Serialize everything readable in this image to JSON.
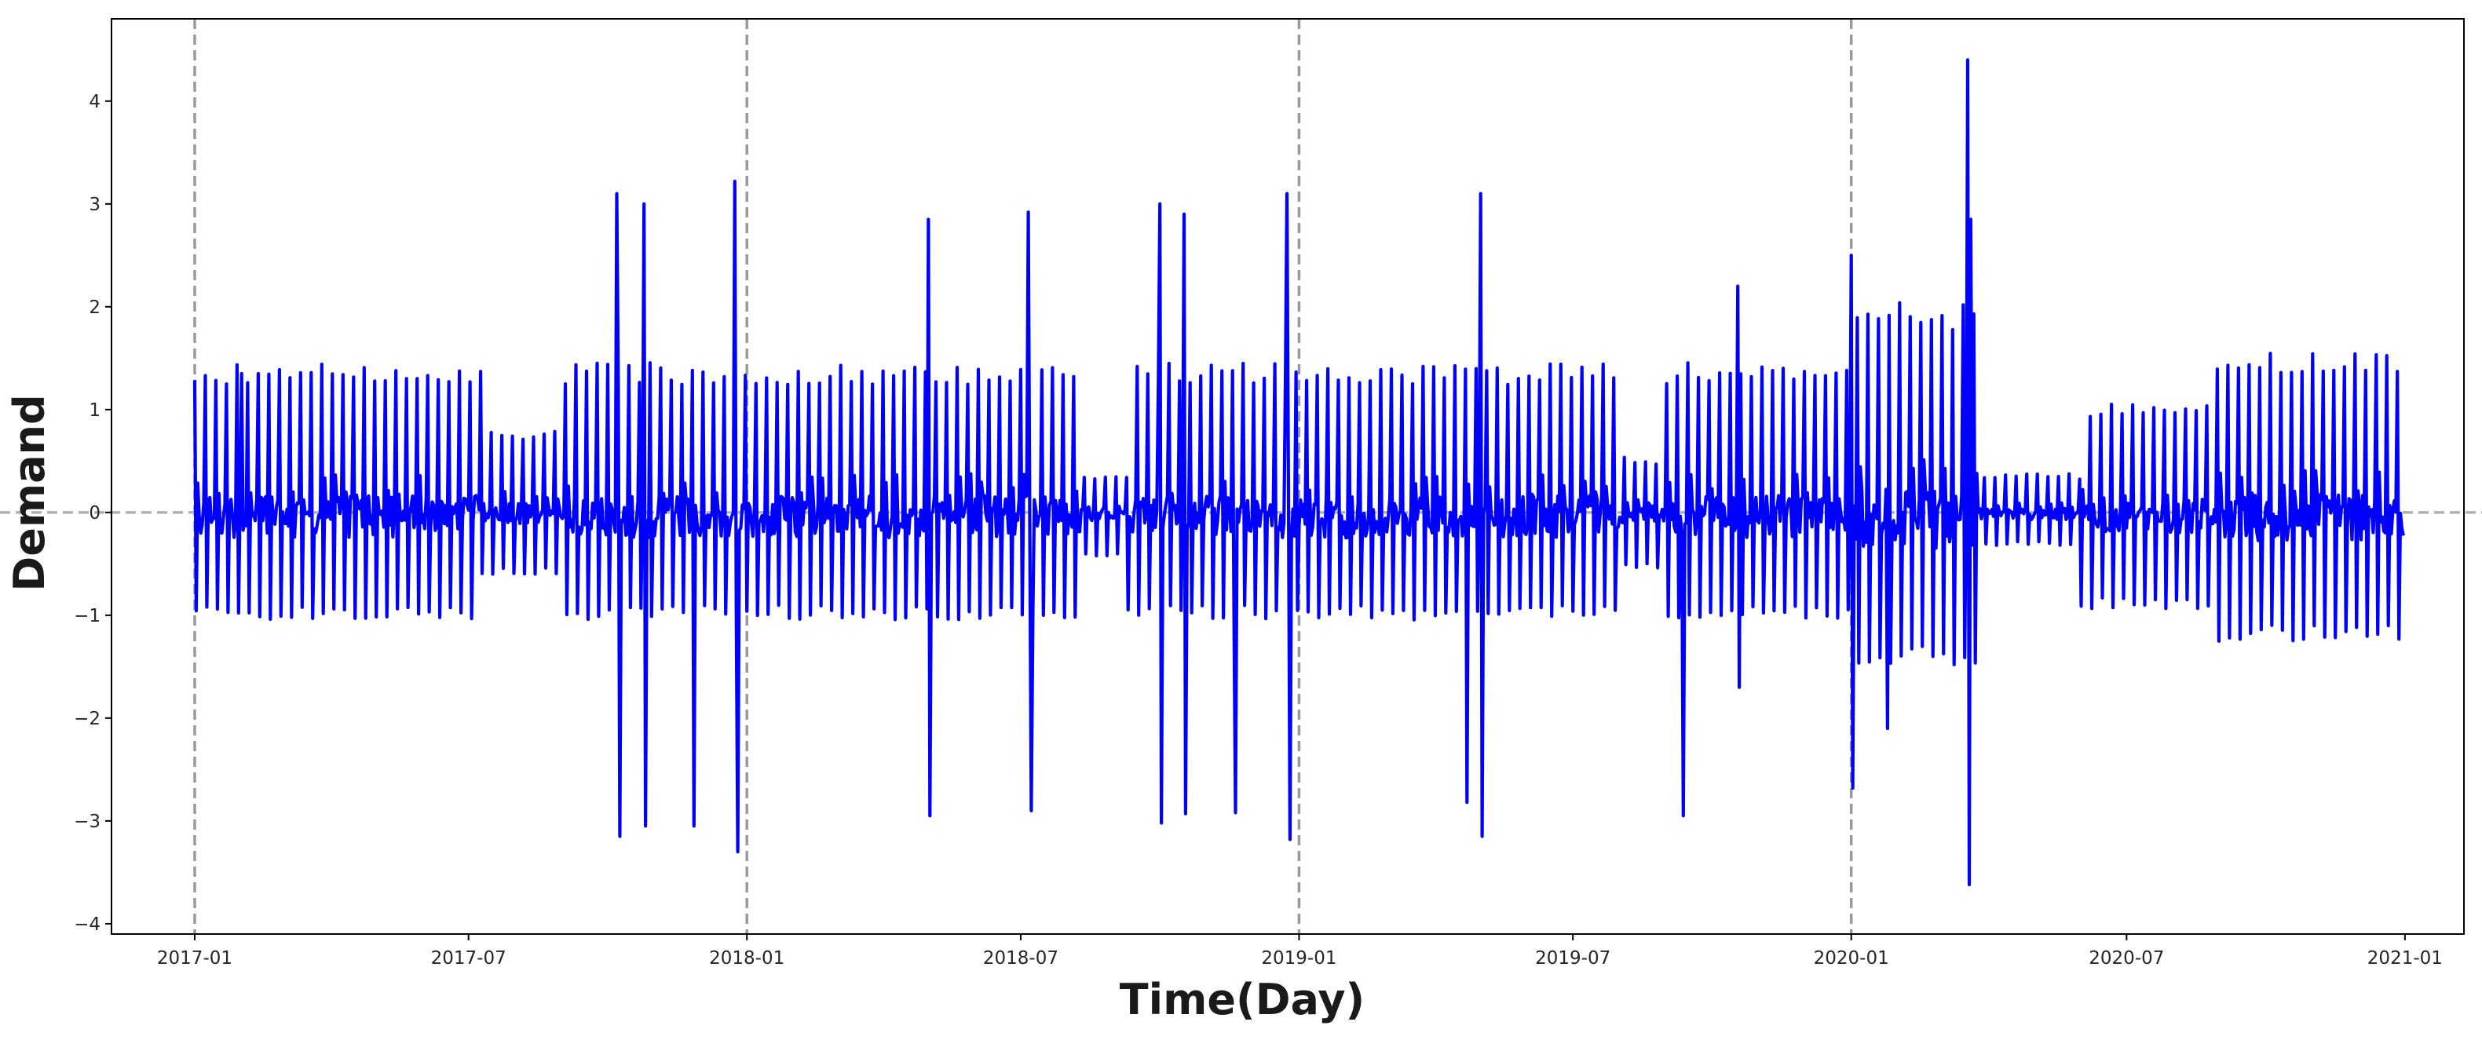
{
  "chart_data": {
    "type": "line",
    "title": "",
    "xlabel": "Time(Day)",
    "ylabel": "Demand",
    "x_axis": {
      "kind": "date",
      "range": [
        "2016-11-07",
        "2021-02-09"
      ],
      "ticks": [
        "2017-01",
        "2017-07",
        "2018-01",
        "2018-07",
        "2019-01",
        "2019-07",
        "2020-01",
        "2020-07",
        "2021-01"
      ]
    },
    "y_axis": {
      "range": [
        -4.1,
        4.8
      ],
      "ticks": [
        -4,
        -3,
        -2,
        -1,
        0,
        1,
        2,
        3,
        4
      ]
    },
    "grid": false,
    "legend": "none",
    "reference_lines": {
      "vertical_dates": [
        "2017-01-01",
        "2018-01-01",
        "2019-01-01",
        "2020-01-01"
      ],
      "horizontal_y": 0,
      "style": "dashed",
      "color": "#9a9a9a"
    },
    "series": [
      {
        "color": "#0000ff",
        "note_values": "daily demand from 2017-01-01 to 2020-12-31 with a weekly pattern; notable extremes listed in peaks",
        "peaks": [
          {
            "x": "2017-02-01",
            "y": 1.35
          },
          {
            "x": "2017-10-07",
            "y": 3.1
          },
          {
            "x": "2017-10-09",
            "y": -3.15
          },
          {
            "x": "2017-10-25",
            "y": 3.0
          },
          {
            "x": "2017-10-26",
            "y": -3.05
          },
          {
            "x": "2017-11-27",
            "y": -3.05
          },
          {
            "x": "2017-12-24",
            "y": 3.22
          },
          {
            "x": "2017-12-26",
            "y": -3.3
          },
          {
            "x": "2018-05-01",
            "y": 2.85
          },
          {
            "x": "2018-05-02",
            "y": -2.95
          },
          {
            "x": "2018-07-06",
            "y": 2.92
          },
          {
            "x": "2018-07-08",
            "y": -2.9
          },
          {
            "x": "2018-10-01",
            "y": 3.0
          },
          {
            "x": "2018-10-02",
            "y": -3.02
          },
          {
            "x": "2018-10-17",
            "y": 2.9
          },
          {
            "x": "2018-10-18",
            "y": -2.93
          },
          {
            "x": "2018-11-20",
            "y": -2.92
          },
          {
            "x": "2018-12-24",
            "y": 3.1
          },
          {
            "x": "2018-12-26",
            "y": -3.18
          },
          {
            "x": "2019-04-22",
            "y": -2.82
          },
          {
            "x": "2019-05-01",
            "y": 3.1
          },
          {
            "x": "2019-05-02",
            "y": -3.15
          },
          {
            "x": "2019-10-18",
            "y": 2.2
          },
          {
            "x": "2019-10-19",
            "y": -1.7
          },
          {
            "x": "2019-09-12",
            "y": -2.95
          },
          {
            "x": "2020-01-01",
            "y": 2.5
          },
          {
            "x": "2020-01-02",
            "y": -2.68
          },
          {
            "x": "2020-01-25",
            "y": -2.1
          },
          {
            "x": "2020-03-18",
            "y": 4.4
          },
          {
            "x": "2020-03-19",
            "y": -3.62
          },
          {
            "x": "2020-03-20",
            "y": 2.85
          }
        ]
      }
    ]
  }
}
